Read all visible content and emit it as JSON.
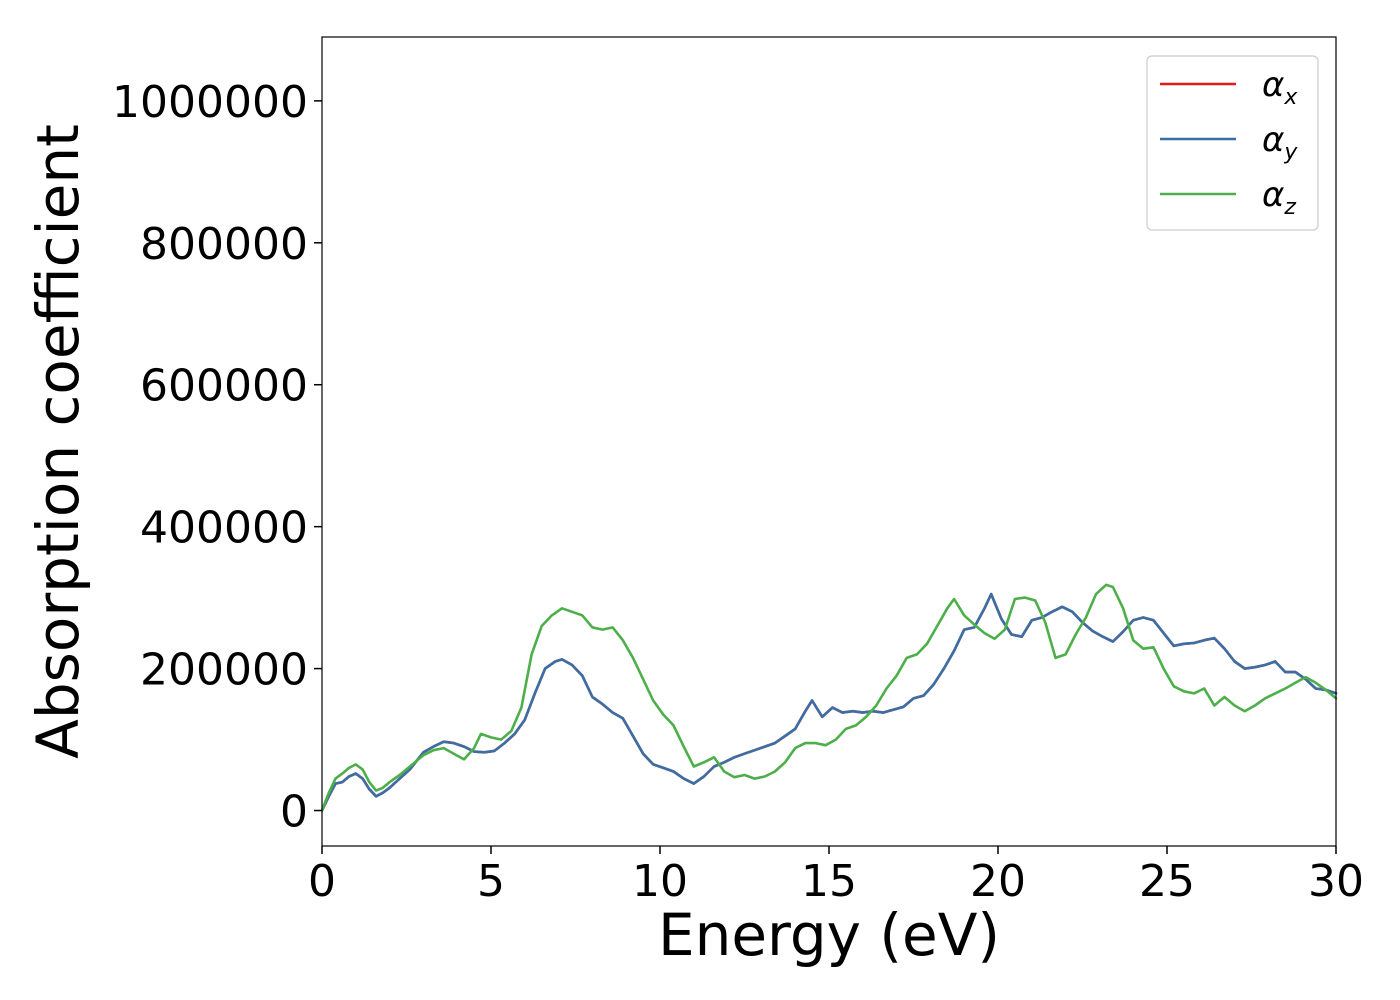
{
  "chart_data": {
    "type": "line",
    "title": "",
    "xlabel": "Energy (eV)",
    "ylabel": "Absorption coefficient",
    "xlim": [
      0,
      30
    ],
    "ylim": [
      -50000,
      1090000
    ],
    "xticks": [
      "0",
      "5",
      "10",
      "15",
      "20",
      "25",
      "30"
    ],
    "yticks": [
      "0",
      "200000",
      "400000",
      "600000",
      "800000",
      "1000000"
    ],
    "grid": false,
    "legend_position": "top-right",
    "series": [
      {
        "name": "αx",
        "label_main": "α",
        "label_sub": "x",
        "color": "#e41a1c",
        "x": [
          0,
          0.2,
          0.4,
          0.6,
          0.8,
          1.0,
          1.2,
          1.4,
          1.6,
          1.8,
          2.0,
          2.3,
          2.6,
          3.0,
          3.3,
          3.6,
          3.9,
          4.2,
          4.5,
          4.8,
          5.1,
          5.4,
          5.7,
          6.0,
          6.3,
          6.6,
          6.9,
          7.1,
          7.4,
          7.7,
          8.0,
          8.3,
          8.6,
          8.9,
          9.2,
          9.5,
          9.8,
          10.1,
          10.4,
          10.7,
          11.0,
          11.3,
          11.6,
          11.9,
          12.2,
          12.5,
          12.8,
          13.1,
          13.4,
          13.7,
          14.0,
          14.3,
          14.5,
          14.8,
          15.1,
          15.4,
          15.7,
          16.0,
          16.3,
          16.6,
          16.9,
          17.2,
          17.5,
          17.8,
          18.1,
          18.4,
          18.7,
          19.0,
          19.3,
          19.6,
          19.8,
          20.1,
          20.4,
          20.7,
          21.0,
          21.3,
          21.6,
          21.9,
          22.2,
          22.5,
          22.8,
          23.1,
          23.4,
          23.7,
          24.0,
          24.3,
          24.6,
          24.9,
          25.2,
          25.5,
          25.8,
          26.1,
          26.4,
          26.7,
          27.0,
          27.3,
          27.6,
          27.9,
          28.2,
          28.5,
          28.8,
          29.1,
          29.4,
          29.7,
          30.0
        ],
        "y": [
          0,
          20000,
          38000,
          40000,
          48000,
          52000,
          45000,
          30000,
          20000,
          25000,
          32000,
          45000,
          58000,
          82000,
          90000,
          97000,
          95000,
          90000,
          83000,
          82000,
          84000,
          95000,
          108000,
          128000,
          165000,
          200000,
          210000,
          213000,
          205000,
          190000,
          160000,
          150000,
          138000,
          130000,
          105000,
          80000,
          65000,
          60000,
          55000,
          45000,
          38000,
          48000,
          62000,
          68000,
          75000,
          80000,
          85000,
          90000,
          95000,
          105000,
          115000,
          140000,
          155000,
          132000,
          145000,
          138000,
          140000,
          138000,
          140000,
          138000,
          142000,
          146000,
          158000,
          162000,
          178000,
          200000,
          225000,
          255000,
          258000,
          285000,
          305000,
          270000,
          248000,
          245000,
          268000,
          272000,
          280000,
          287000,
          280000,
          265000,
          253000,
          245000,
          238000,
          252000,
          268000,
          272000,
          268000,
          250000,
          232000,
          235000,
          236000,
          240000,
          243000,
          228000,
          210000,
          200000,
          202000,
          205000,
          210000,
          195000,
          195000,
          185000,
          172000,
          170000,
          165000
        ]
      },
      {
        "name": "αy",
        "label_main": "α",
        "label_sub": "y",
        "color": "#3a6fa6",
        "x": [
          0,
          0.2,
          0.4,
          0.6,
          0.8,
          1.0,
          1.2,
          1.4,
          1.6,
          1.8,
          2.0,
          2.3,
          2.6,
          3.0,
          3.3,
          3.6,
          3.9,
          4.2,
          4.5,
          4.8,
          5.1,
          5.4,
          5.7,
          6.0,
          6.3,
          6.6,
          6.9,
          7.1,
          7.4,
          7.7,
          8.0,
          8.3,
          8.6,
          8.9,
          9.2,
          9.5,
          9.8,
          10.1,
          10.4,
          10.7,
          11.0,
          11.3,
          11.6,
          11.9,
          12.2,
          12.5,
          12.8,
          13.1,
          13.4,
          13.7,
          14.0,
          14.3,
          14.5,
          14.8,
          15.1,
          15.4,
          15.7,
          16.0,
          16.3,
          16.6,
          16.9,
          17.2,
          17.5,
          17.8,
          18.1,
          18.4,
          18.7,
          19.0,
          19.3,
          19.6,
          19.8,
          20.1,
          20.4,
          20.7,
          21.0,
          21.3,
          21.6,
          21.9,
          22.2,
          22.5,
          22.8,
          23.1,
          23.4,
          23.7,
          24.0,
          24.3,
          24.6,
          24.9,
          25.2,
          25.5,
          25.8,
          26.1,
          26.4,
          26.7,
          27.0,
          27.3,
          27.6,
          27.9,
          28.2,
          28.5,
          28.8,
          29.1,
          29.4,
          29.7,
          30.0
        ],
        "y": [
          0,
          20000,
          38000,
          40000,
          48000,
          52000,
          45000,
          30000,
          20000,
          25000,
          32000,
          45000,
          58000,
          82000,
          90000,
          97000,
          95000,
          90000,
          83000,
          82000,
          84000,
          95000,
          108000,
          128000,
          165000,
          200000,
          210000,
          213000,
          205000,
          190000,
          160000,
          150000,
          138000,
          130000,
          105000,
          80000,
          65000,
          60000,
          55000,
          45000,
          38000,
          48000,
          62000,
          68000,
          75000,
          80000,
          85000,
          90000,
          95000,
          105000,
          115000,
          140000,
          155000,
          132000,
          145000,
          138000,
          140000,
          138000,
          140000,
          138000,
          142000,
          146000,
          158000,
          162000,
          178000,
          200000,
          225000,
          255000,
          258000,
          285000,
          305000,
          270000,
          248000,
          245000,
          268000,
          272000,
          280000,
          287000,
          280000,
          265000,
          253000,
          245000,
          238000,
          252000,
          268000,
          272000,
          268000,
          250000,
          232000,
          235000,
          236000,
          240000,
          243000,
          228000,
          210000,
          200000,
          202000,
          205000,
          210000,
          195000,
          195000,
          185000,
          172000,
          170000,
          165000
        ]
      },
      {
        "name": "αz",
        "label_main": "α",
        "label_sub": "z",
        "color": "#4daf4a",
        "x": [
          0,
          0.2,
          0.4,
          0.6,
          0.8,
          1.0,
          1.2,
          1.4,
          1.6,
          1.8,
          2.0,
          2.3,
          2.6,
          3.0,
          3.3,
          3.6,
          3.9,
          4.2,
          4.5,
          4.7,
          5.0,
          5.3,
          5.6,
          5.9,
          6.2,
          6.5,
          6.8,
          7.1,
          7.4,
          7.7,
          8.0,
          8.3,
          8.6,
          8.9,
          9.2,
          9.5,
          9.8,
          10.1,
          10.4,
          10.7,
          11.0,
          11.3,
          11.6,
          11.9,
          12.2,
          12.5,
          12.8,
          13.1,
          13.4,
          13.7,
          14.0,
          14.3,
          14.6,
          14.9,
          15.2,
          15.5,
          15.8,
          16.1,
          16.4,
          16.7,
          17.0,
          17.3,
          17.6,
          17.9,
          18.2,
          18.5,
          18.7,
          19.0,
          19.3,
          19.6,
          19.9,
          20.2,
          20.5,
          20.8,
          21.1,
          21.4,
          21.7,
          22.0,
          22.3,
          22.6,
          22.9,
          23.2,
          23.4,
          23.7,
          24.0,
          24.3,
          24.6,
          24.9,
          25.2,
          25.5,
          25.8,
          26.1,
          26.4,
          26.7,
          27.0,
          27.3,
          27.6,
          27.9,
          28.2,
          28.5,
          28.8,
          29.1,
          29.4,
          29.7,
          30.0
        ],
        "y": [
          0,
          25000,
          45000,
          52000,
          60000,
          65000,
          58000,
          40000,
          28000,
          32000,
          40000,
          50000,
          62000,
          78000,
          85000,
          88000,
          80000,
          72000,
          88000,
          108000,
          103000,
          100000,
          112000,
          145000,
          220000,
          260000,
          275000,
          285000,
          280000,
          275000,
          258000,
          255000,
          258000,
          240000,
          215000,
          185000,
          155000,
          135000,
          120000,
          90000,
          62000,
          68000,
          75000,
          55000,
          47000,
          50000,
          45000,
          48000,
          55000,
          68000,
          88000,
          95000,
          95000,
          92000,
          100000,
          115000,
          120000,
          132000,
          148000,
          172000,
          190000,
          215000,
          220000,
          235000,
          260000,
          285000,
          298000,
          275000,
          262000,
          250000,
          242000,
          255000,
          298000,
          300000,
          296000,
          265000,
          215000,
          220000,
          248000,
          272000,
          305000,
          318000,
          315000,
          285000,
          240000,
          228000,
          230000,
          200000,
          175000,
          168000,
          165000,
          172000,
          148000,
          160000,
          148000,
          140000,
          148000,
          158000,
          165000,
          172000,
          180000,
          188000,
          180000,
          170000,
          158000
        ]
      }
    ]
  }
}
